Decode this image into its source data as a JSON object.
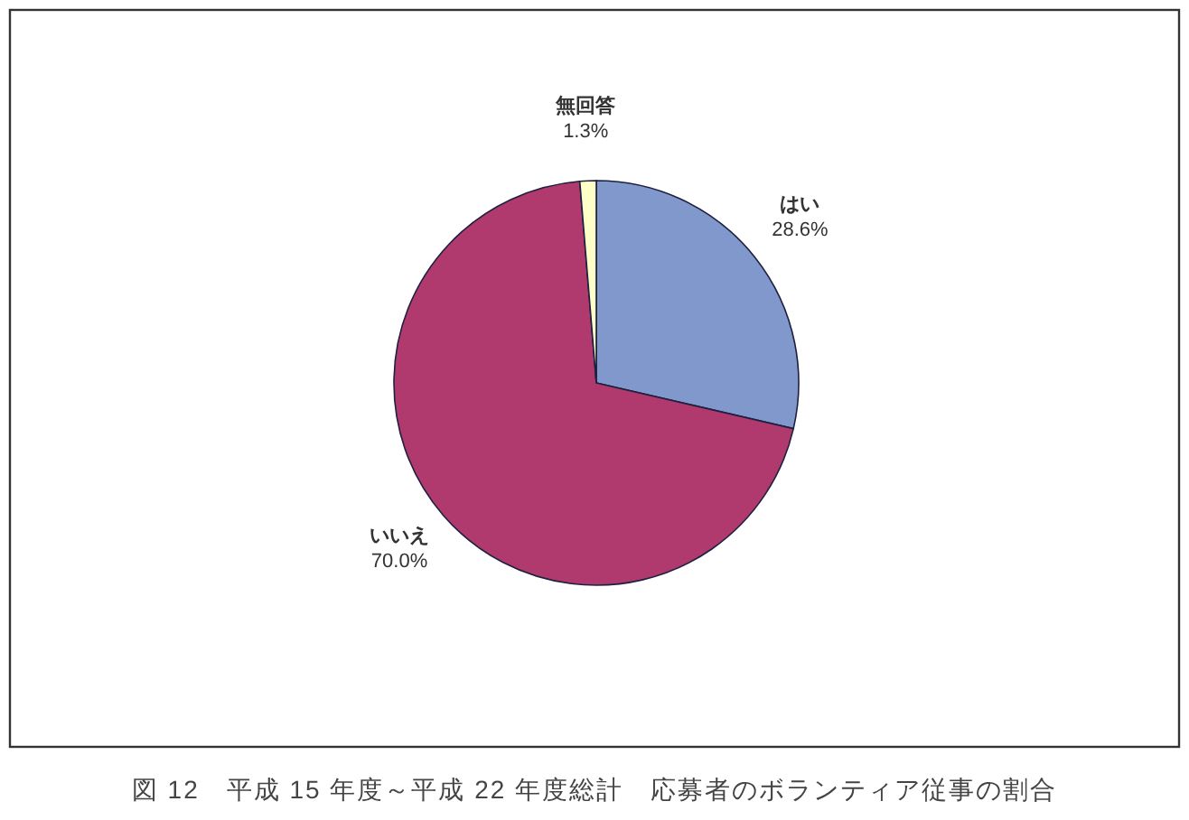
{
  "chart_data": {
    "type": "pie",
    "categories": [
      "はい",
      "いいえ",
      "無回答"
    ],
    "values": [
      28.6,
      70.0,
      1.3
    ],
    "value_labels": [
      "28.6%",
      "70.0%",
      "1.3%"
    ],
    "colors": [
      "#8098cc",
      "#b03a6e",
      "#ffffc8"
    ],
    "annotations": [
      "図 12　平成 15 年度～平成 22 年度総計　応募者のボランティア従事の割合"
    ]
  }
}
